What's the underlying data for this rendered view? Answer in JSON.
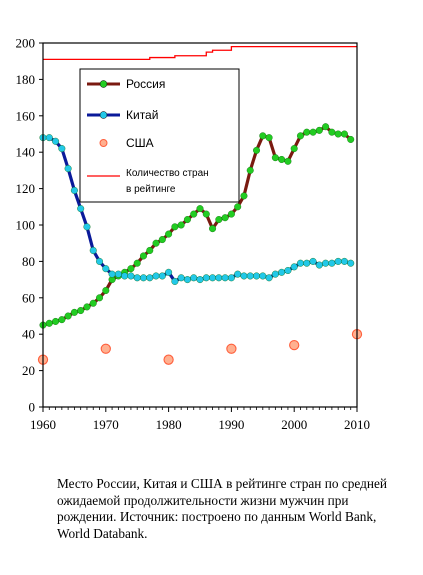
{
  "caption": "Место России, Китая и США в  рейтинге стран по средней ожидаемой продолжительности жизни мужчин при рождении. Источник: построено по данным World Bank, World Databank.",
  "chart_data": {
    "type": "line",
    "title": "",
    "xlabel": "",
    "ylabel": "",
    "xlim": [
      1960,
      2010
    ],
    "ylim": [
      0,
      200
    ],
    "x_ticks": [
      1960,
      1970,
      1980,
      1990,
      2000,
      2010
    ],
    "y_ticks": [
      0,
      20,
      40,
      60,
      80,
      100,
      120,
      140,
      160,
      180,
      200
    ],
    "grid": false,
    "legend": {
      "position": "inside upper-left",
      "entries": [
        "Россия",
        "Китай",
        "США",
        "Количество стран в рейтинге"
      ]
    },
    "series": [
      {
        "name": "Россия",
        "style": "line+markers",
        "line_color": "#7a1a10",
        "marker_color": "#22cc22",
        "x": [
          1960,
          1961,
          1962,
          1963,
          1964,
          1965,
          1966,
          1967,
          1968,
          1969,
          1970,
          1971,
          1972,
          1973,
          1974,
          1975,
          1976,
          1977,
          1978,
          1979,
          1980,
          1981,
          1982,
          1983,
          1984,
          1985,
          1986,
          1987,
          1988,
          1989,
          1990,
          1991,
          1992,
          1993,
          1994,
          1995,
          1996,
          1997,
          1998,
          1999,
          2000,
          2001,
          2002,
          2003,
          2004,
          2005,
          2006,
          2007,
          2008,
          2009
        ],
        "y": [
          45,
          46,
          47,
          48,
          50,
          52,
          53,
          55,
          57,
          60,
          64,
          70,
          72,
          74,
          76,
          79,
          83,
          86,
          90,
          92,
          95,
          99,
          100,
          103,
          106,
          109,
          106,
          98,
          103,
          104,
          106,
          110,
          116,
          130,
          141,
          149,
          148,
          137,
          136,
          135,
          142,
          149,
          151,
          151,
          152,
          154,
          151,
          150,
          150,
          147
        ]
      },
      {
        "name": "Китай",
        "style": "line+markers",
        "line_color": "#0a1a9a",
        "marker_color": "#22c8e8",
        "x": [
          1960,
          1961,
          1962,
          1963,
          1964,
          1965,
          1966,
          1967,
          1968,
          1969,
          1970,
          1971,
          1972,
          1973,
          1974,
          1975,
          1976,
          1977,
          1978,
          1979,
          1980,
          1981,
          1982,
          1983,
          1984,
          1985,
          1986,
          1987,
          1988,
          1989,
          1990,
          1991,
          1992,
          1993,
          1994,
          1995,
          1996,
          1997,
          1998,
          1999,
          2000,
          2001,
          2002,
          2003,
          2004,
          2005,
          2006,
          2007,
          2008,
          2009
        ],
        "y": [
          148,
          148,
          146,
          142,
          131,
          119,
          109,
          99,
          86,
          80,
          76,
          73,
          73,
          72,
          72,
          71,
          71,
          71,
          72,
          72,
          74,
          69,
          71,
          70,
          71,
          70,
          71,
          71,
          71,
          71,
          71,
          73,
          72,
          72,
          72,
          72,
          71,
          73,
          74,
          75,
          77,
          79,
          79,
          80,
          78,
          79,
          79,
          80,
          80,
          79
        ]
      },
      {
        "name": "США",
        "style": "markers",
        "marker_color": "#ff5f3c",
        "x": [
          1960,
          1970,
          1980,
          1990,
          2000,
          2010
        ],
        "y": [
          26,
          32,
          26,
          32,
          34,
          40
        ]
      },
      {
        "name": "Количество стран в рейтинге",
        "style": "step-line",
        "line_color": "#ff0000",
        "x": [
          1960,
          1977,
          1977,
          1981,
          1981,
          1986,
          1986,
          1987,
          1987,
          1990,
          1990,
          2010
        ],
        "y": [
          191,
          191,
          192,
          192,
          193,
          193,
          195,
          195,
          196,
          196,
          198,
          198
        ]
      }
    ]
  }
}
